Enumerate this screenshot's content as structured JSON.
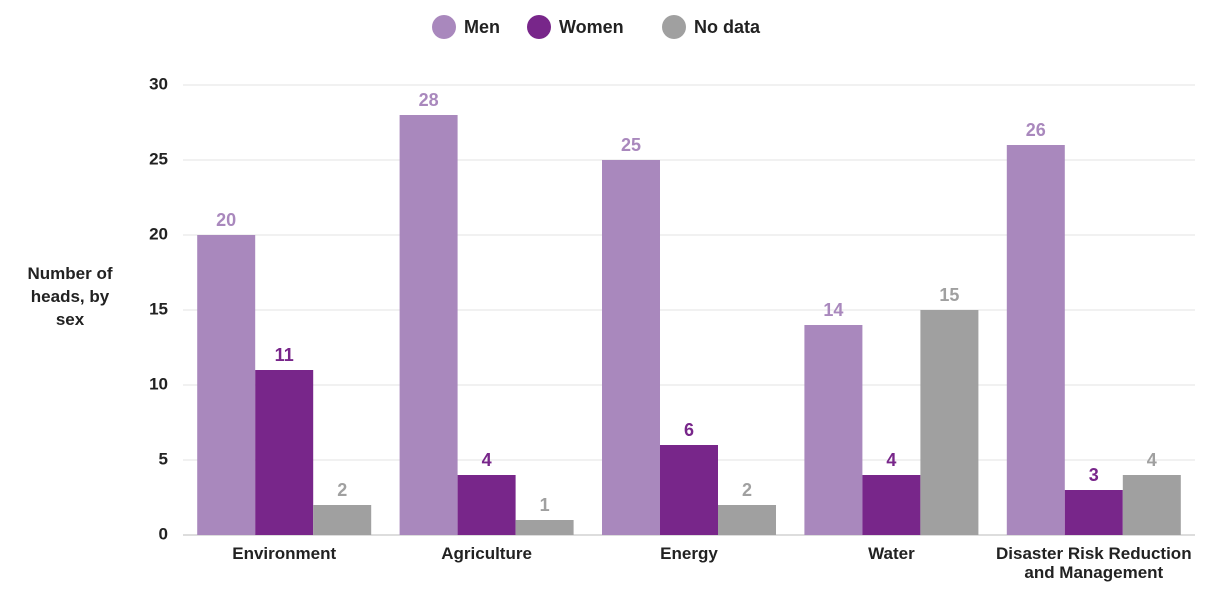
{
  "chart_data": {
    "type": "bar",
    "y_label": "Number of heads, by sex",
    "categories": [
      "Environment",
      "Agriculture",
      "Energy",
      "Water",
      "Disaster Risk Reduction and Management"
    ],
    "series": [
      {
        "name": "Men",
        "color": "#a988bd",
        "values": [
          20,
          28,
          25,
          14,
          26
        ]
      },
      {
        "name": "Women",
        "color": "#78268a",
        "values": [
          11,
          4,
          6,
          4,
          3
        ]
      },
      {
        "name": "No data",
        "color": "#a0a0a0",
        "values": [
          2,
          1,
          2,
          15,
          4
        ]
      }
    ],
    "ylim": [
      0,
      30
    ],
    "yticks": [
      0,
      5,
      10,
      15,
      20,
      25,
      30
    ],
    "grid": true,
    "legend": "top"
  }
}
